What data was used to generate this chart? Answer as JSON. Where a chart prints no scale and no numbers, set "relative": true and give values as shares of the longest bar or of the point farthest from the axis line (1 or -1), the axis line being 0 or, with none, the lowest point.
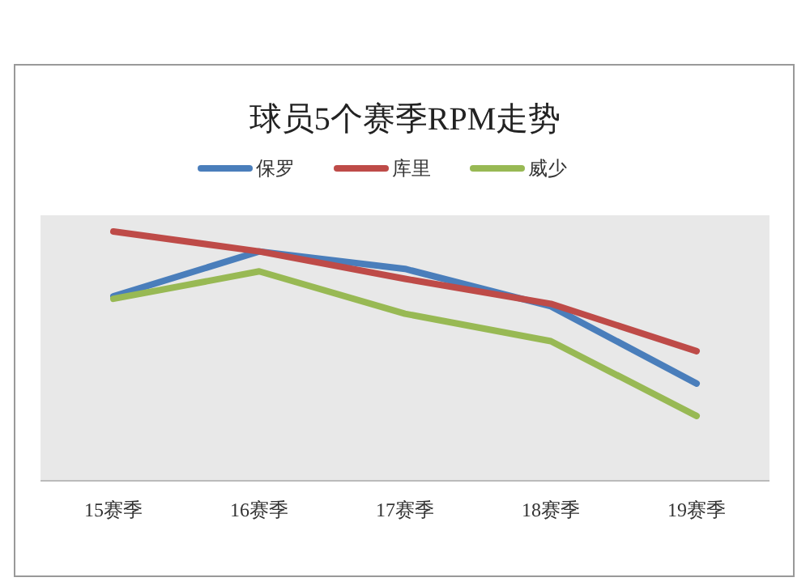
{
  "chart_data": {
    "type": "line",
    "title": "球员5个赛季RPM走势",
    "relative": true,
    "legend": "top",
    "categories": [
      "15赛季",
      "16赛季",
      "17赛季",
      "18赛季",
      "19赛季"
    ],
    "series": [
      {
        "name": "保罗",
        "color": "#4a7ebb",
        "values": [
          0.74,
          0.92,
          0.85,
          0.7,
          0.39
        ]
      },
      {
        "name": "库里",
        "color": "#be4b48",
        "values": [
          1,
          0.92,
          0.81,
          0.71,
          0.52
        ]
      },
      {
        "name": "威少",
        "color": "#98b954",
        "values": [
          0.73,
          0.84,
          0.67,
          0.56,
          0.26
        ]
      }
    ]
  }
}
